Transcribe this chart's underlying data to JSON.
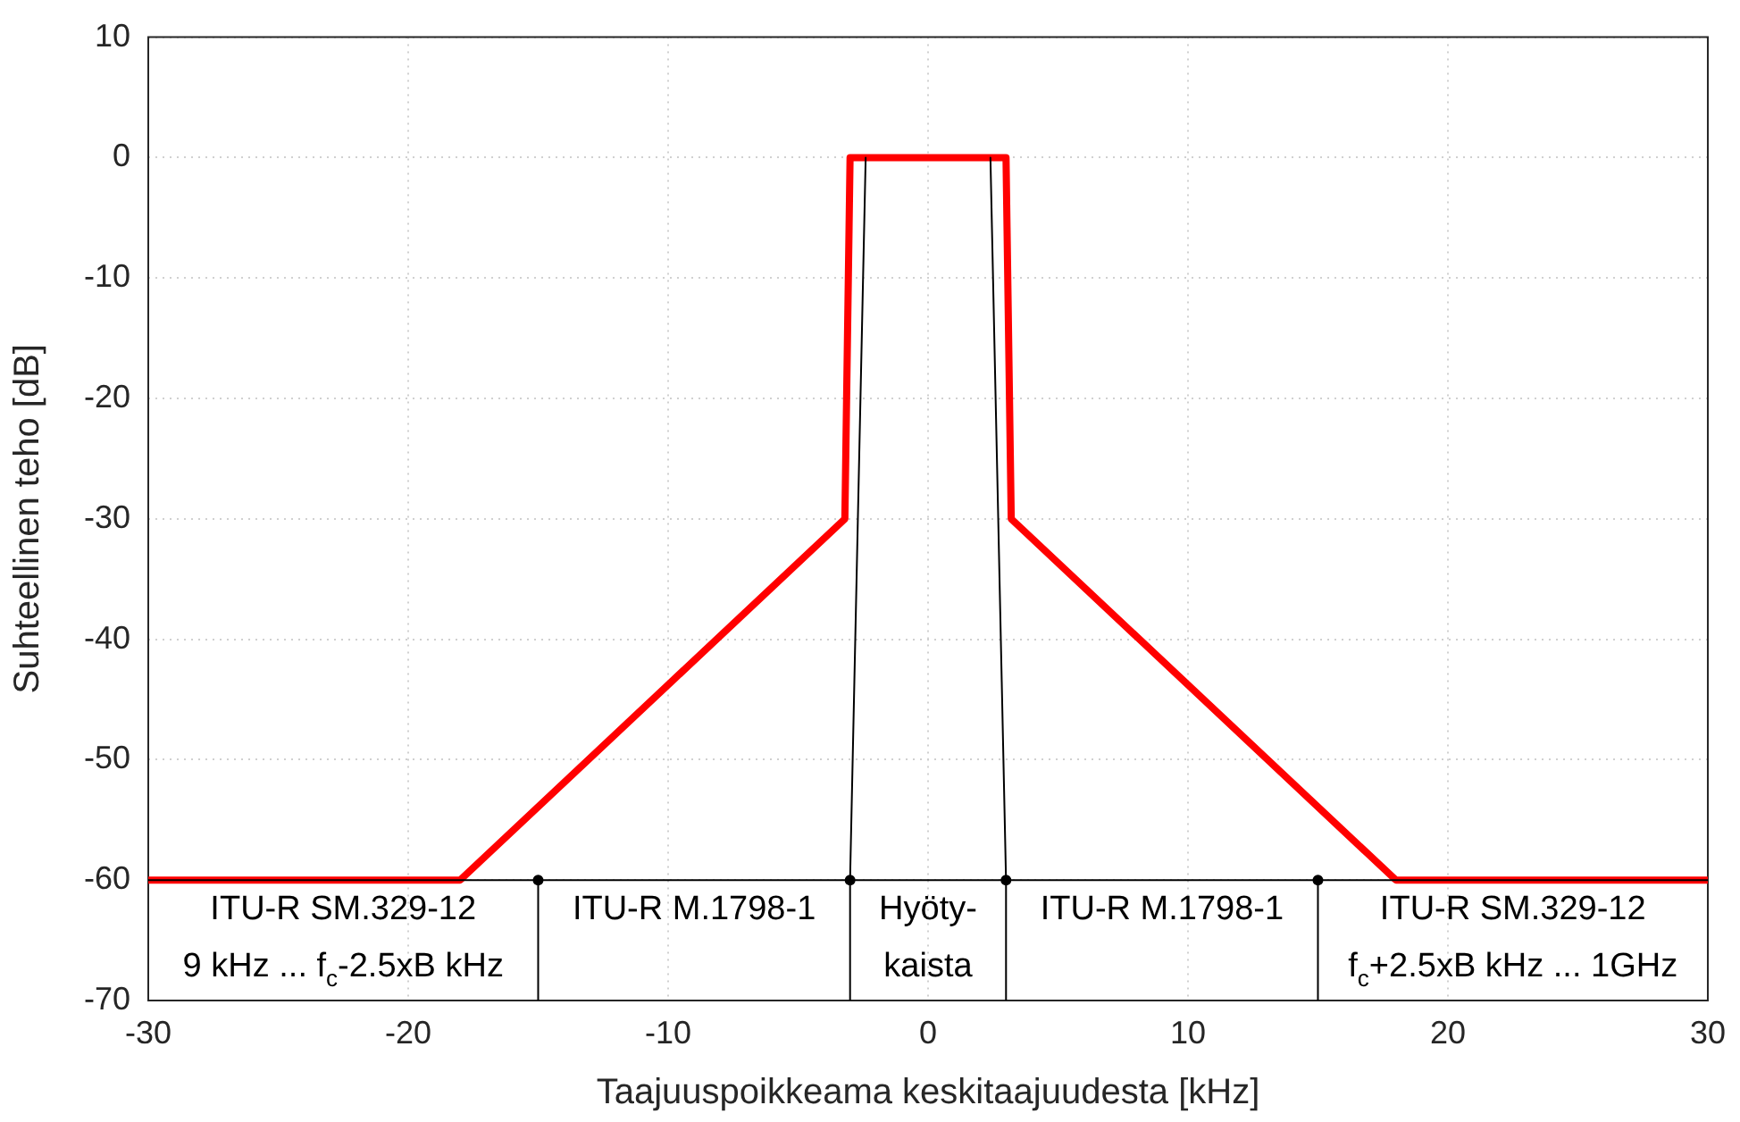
{
  "chart_data": {
    "type": "line",
    "xlabel": "Taajuuspoikkeama keskitaajuudesta [kHz]",
    "ylabel": "Suhteellinen teho [dB]",
    "xlim": [
      -30,
      30
    ],
    "xticks": [
      -30,
      -20,
      -10,
      0,
      10,
      20,
      30
    ],
    "ylim": [
      -70,
      10
    ],
    "yticks": [
      -70,
      -60,
      -50,
      -40,
      -30,
      -20,
      -10,
      0,
      10
    ],
    "grid": true,
    "legend": false,
    "line_style": "solid",
    "marker": "none",
    "series": [
      {
        "color": "#000000",
        "x": [
          -30,
          30
        ],
        "values": [
          -60,
          -60
        ]
      },
      {
        "color": "#000000",
        "x": [
          -2.4,
          -3
        ],
        "values": [
          0,
          -60
        ]
      },
      {
        "color": "#000000",
        "x": [
          2.4,
          3
        ],
        "values": [
          0,
          -60
        ]
      },
      {
        "color": "#000000",
        "x": [
          -15,
          -15
        ],
        "values": [
          -60,
          -70
        ]
      },
      {
        "color": "#000000",
        "x": [
          -3,
          -3
        ],
        "values": [
          -60,
          -70
        ]
      },
      {
        "color": "#000000",
        "x": [
          3,
          3
        ],
        "values": [
          -60,
          -70
        ]
      },
      {
        "color": "#000000",
        "x": [
          15,
          15
        ],
        "values": [
          -60,
          -70
        ]
      },
      {
        "type": "scatter",
        "marker": "circle",
        "color": "#000000",
        "x": [
          -15,
          -3,
          3,
          15
        ],
        "values": [
          -60,
          -60,
          -60,
          -60
        ]
      },
      {
        "color": "#ff0000",
        "x": [
          -30,
          -18,
          -3.2,
          -3,
          3,
          3.2,
          18,
          30
        ],
        "values": [
          -60,
          -60,
          -30,
          0,
          0,
          -30,
          -60,
          -60
        ]
      }
    ],
    "annotations": [
      "ITU-R SM.329-12\n9 kHz ... f$_{c}$-2.5xB kHz",
      "ITU-R M.1798-1",
      "Hyöty-\nkaista",
      "ITU-R M.1798-1",
      "ITU-R SM.329-12\nf$_{c}$+2.5xB kHz ... 1GHz"
    ]
  }
}
